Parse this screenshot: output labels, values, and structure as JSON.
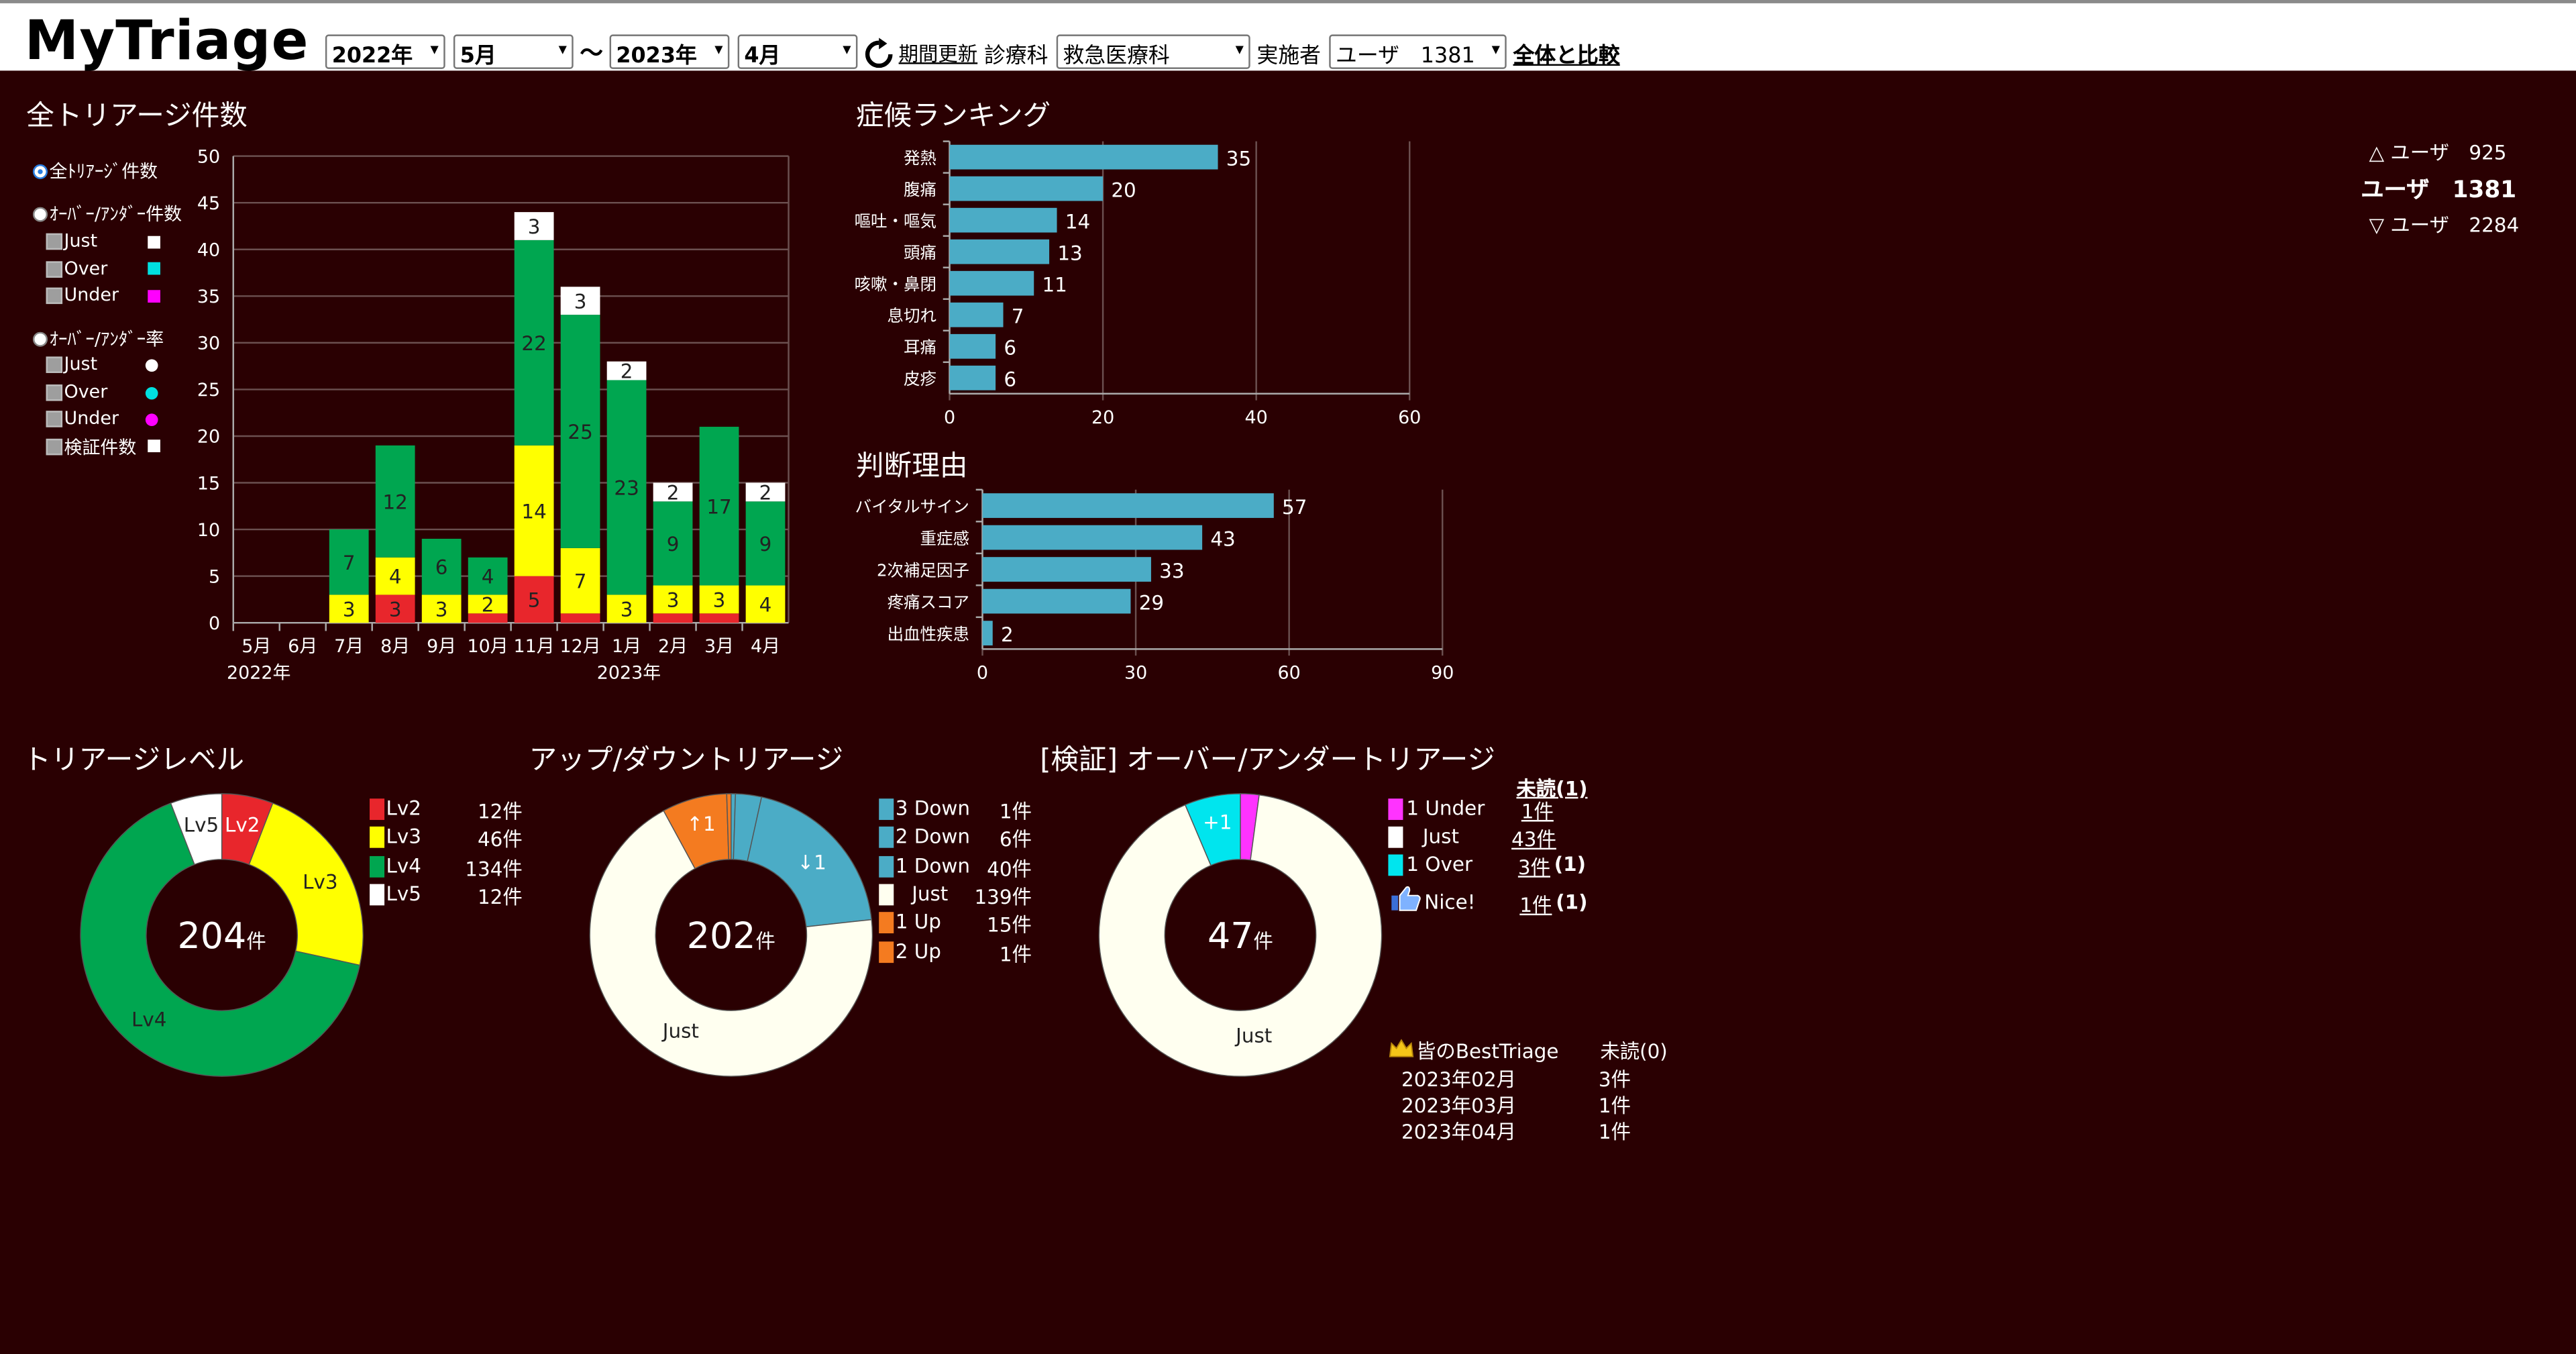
{
  "header": {
    "logo": "MyTriage",
    "from_year": "2022年",
    "from_month": "5月",
    "tilde": "～",
    "to_year": "2023年",
    "to_month": "4月",
    "refresh_label": "期間更新",
    "dept_label": "診療科",
    "dept_value": "救急医療科",
    "performer_label": "実施者",
    "performer_value": "ユーザ　1381",
    "compare_label": "全体と比較"
  },
  "total_panel": {
    "title": "全トリアージ件数",
    "filters": {
      "radio_total": "全ﾄﾘｱｰｼﾞ件数",
      "radio_overunder_count": "ｵｰﾊﾞｰ/ｱﾝﾀﾞｰ件数",
      "count_items": [
        "Just",
        "Over",
        "Under"
      ],
      "radio_overunder_rate": "ｵｰﾊﾞｰ/ｱﾝﾀﾞｰ率",
      "rate_items": [
        "Just",
        "Over",
        "Under",
        "検証件数"
      ],
      "marker_colors": [
        "#ffffff",
        "#00e0e0",
        "#ff00ff",
        "#ffffff"
      ]
    }
  },
  "user_list": {
    "up": "△ ユーザ　925",
    "current": "ユーザ　1381",
    "down": "▽ ユーザ　2284"
  },
  "chart_data": [
    {
      "type": "bar",
      "stacked": true,
      "categories": [
        "5月",
        "6月",
        "7月",
        "8月",
        "9月",
        "10月",
        "11月",
        "12月",
        "1月",
        "2月",
        "3月",
        "4月"
      ],
      "year_labels": [
        {
          "index": 0,
          "label": "2022年"
        },
        {
          "index": 8,
          "label": "2023年"
        }
      ],
      "series": [
        {
          "color": "#e8262c",
          "values": [
            0,
            0,
            0,
            3,
            0,
            1,
            5,
            1,
            0,
            1,
            1,
            0
          ]
        },
        {
          "color": "#ffff00",
          "values": [
            0,
            0,
            3,
            4,
            3,
            2,
            14,
            7,
            3,
            3,
            3,
            4
          ]
        },
        {
          "color": "#00a650",
          "values": [
            0,
            0,
            7,
            12,
            6,
            4,
            22,
            25,
            23,
            9,
            17,
            9
          ]
        },
        {
          "color": "#ffffff",
          "values": [
            0,
            0,
            0,
            0,
            0,
            0,
            3,
            3,
            2,
            2,
            0,
            2
          ]
        }
      ],
      "value_labels": [
        [
          null,
          null,
          null,
          3,
          null,
          null,
          5,
          null,
          null,
          null,
          null,
          null
        ],
        [
          null,
          null,
          3,
          4,
          3,
          2,
          14,
          7,
          3,
          3,
          3,
          4
        ],
        [
          null,
          null,
          7,
          12,
          6,
          4,
          22,
          25,
          23,
          9,
          17,
          9
        ],
        [
          null,
          null,
          null,
          null,
          null,
          null,
          3,
          3,
          2,
          2,
          null,
          2
        ]
      ],
      "ylim": [
        0,
        50
      ],
      "yticks": [
        0,
        5,
        10,
        15,
        20,
        25,
        30,
        35,
        40,
        45,
        50
      ],
      "grid": true
    },
    {
      "type": "bar",
      "orientation": "horizontal",
      "title": "症候ランキング",
      "categories": [
        "発熱",
        "腹痛",
        "嘔吐・嘔気",
        "頭痛",
        "咳嗽・鼻閉",
        "息切れ",
        "耳痛",
        "皮疹"
      ],
      "values": [
        35,
        20,
        14,
        13,
        11,
        7,
        6,
        6
      ],
      "xlim": [
        0,
        60
      ],
      "xticks": [
        0,
        20,
        40,
        60
      ],
      "color": "#4bacc6",
      "grid": true
    },
    {
      "type": "bar",
      "orientation": "horizontal",
      "title": "判断理由",
      "categories": [
        "バイタルサイン",
        "重症感",
        "2次補足因子",
        "疼痛スコア",
        "出血性疾患"
      ],
      "values": [
        57,
        43,
        33,
        29,
        2
      ],
      "xlim": [
        0,
        90
      ],
      "xticks": [
        0,
        30,
        60,
        90
      ],
      "color": "#4bacc6",
      "grid": true
    },
    {
      "type": "pie",
      "donut": true,
      "title": "トリアージレベル",
      "total_value": "204",
      "total_unit": "件",
      "slices": [
        {
          "name": "Lv2",
          "value": 12,
          "color": "#e8262c",
          "count_label": "12件"
        },
        {
          "name": "Lv3",
          "value": 46,
          "color": "#ffff00",
          "count_label": "46件"
        },
        {
          "name": "Lv4",
          "value": 134,
          "color": "#00a650",
          "count_label": "134件"
        },
        {
          "name": "Lv5",
          "value": 12,
          "color": "#ffffff",
          "count_label": "12件"
        }
      ],
      "slice_labels": [
        "Lv2",
        "Lv3",
        "Lv4",
        "Lv5"
      ]
    },
    {
      "type": "pie",
      "donut": true,
      "title": "アップ/ダウントリアージ",
      "total_value": "202",
      "total_unit": "件",
      "slices": [
        {
          "name": "3 Down",
          "value": 1,
          "color": "#4bacc6",
          "count_label": "1件"
        },
        {
          "name": "2 Down",
          "value": 6,
          "color": "#4bacc6",
          "count_label": "6件"
        },
        {
          "name": "1 Down",
          "value": 40,
          "color": "#4bacc6",
          "count_label": "40件"
        },
        {
          "name": "Just",
          "value": 139,
          "color": "#fffff0",
          "count_label": "139件"
        },
        {
          "name": "1 Up",
          "value": 15,
          "color": "#f47b20",
          "count_label": "15件"
        },
        {
          "name": "2 Up",
          "value": 1,
          "color": "#f47b20",
          "count_label": "1件"
        }
      ],
      "slice_labels": [
        "",
        "",
        "↓1",
        "Just",
        "↑1",
        ""
      ]
    },
    {
      "type": "pie",
      "donut": true,
      "title": "[検証] オーバー/アンダートリアージ",
      "total_value": "47",
      "total_unit": "件",
      "slices": [
        {
          "name": "1 Under",
          "value": 1,
          "color": "#ff33ff",
          "count_label": "1件"
        },
        {
          "name": "Just",
          "value": 43,
          "color": "#fffff0",
          "count_label": "43件"
        },
        {
          "name": "1 Over",
          "value": 3,
          "color": "#00e5ee",
          "count_label": "3件"
        }
      ],
      "slice_labels": [
        "",
        "Just",
        "+1"
      ]
    }
  ],
  "verify_panel": {
    "unread_header": "未読(1)",
    "rows": [
      {
        "label": "1 Under",
        "count": "1件",
        "extra": ""
      },
      {
        "label": "Just",
        "count": "43件",
        "extra": ""
      },
      {
        "label": "1 Over",
        "count": "3件",
        "extra": "(1)"
      }
    ],
    "nice_label": "Nice!",
    "nice_count": "1件",
    "nice_extra": "(1)",
    "best_label": "皆のBestTriage",
    "best_unread": "未読(0)",
    "best_rows": [
      {
        "month": "2023年02月",
        "count": "3件"
      },
      {
        "month": "2023年03月",
        "count": "1件"
      },
      {
        "month": "2023年04月",
        "count": "1件"
      }
    ]
  }
}
